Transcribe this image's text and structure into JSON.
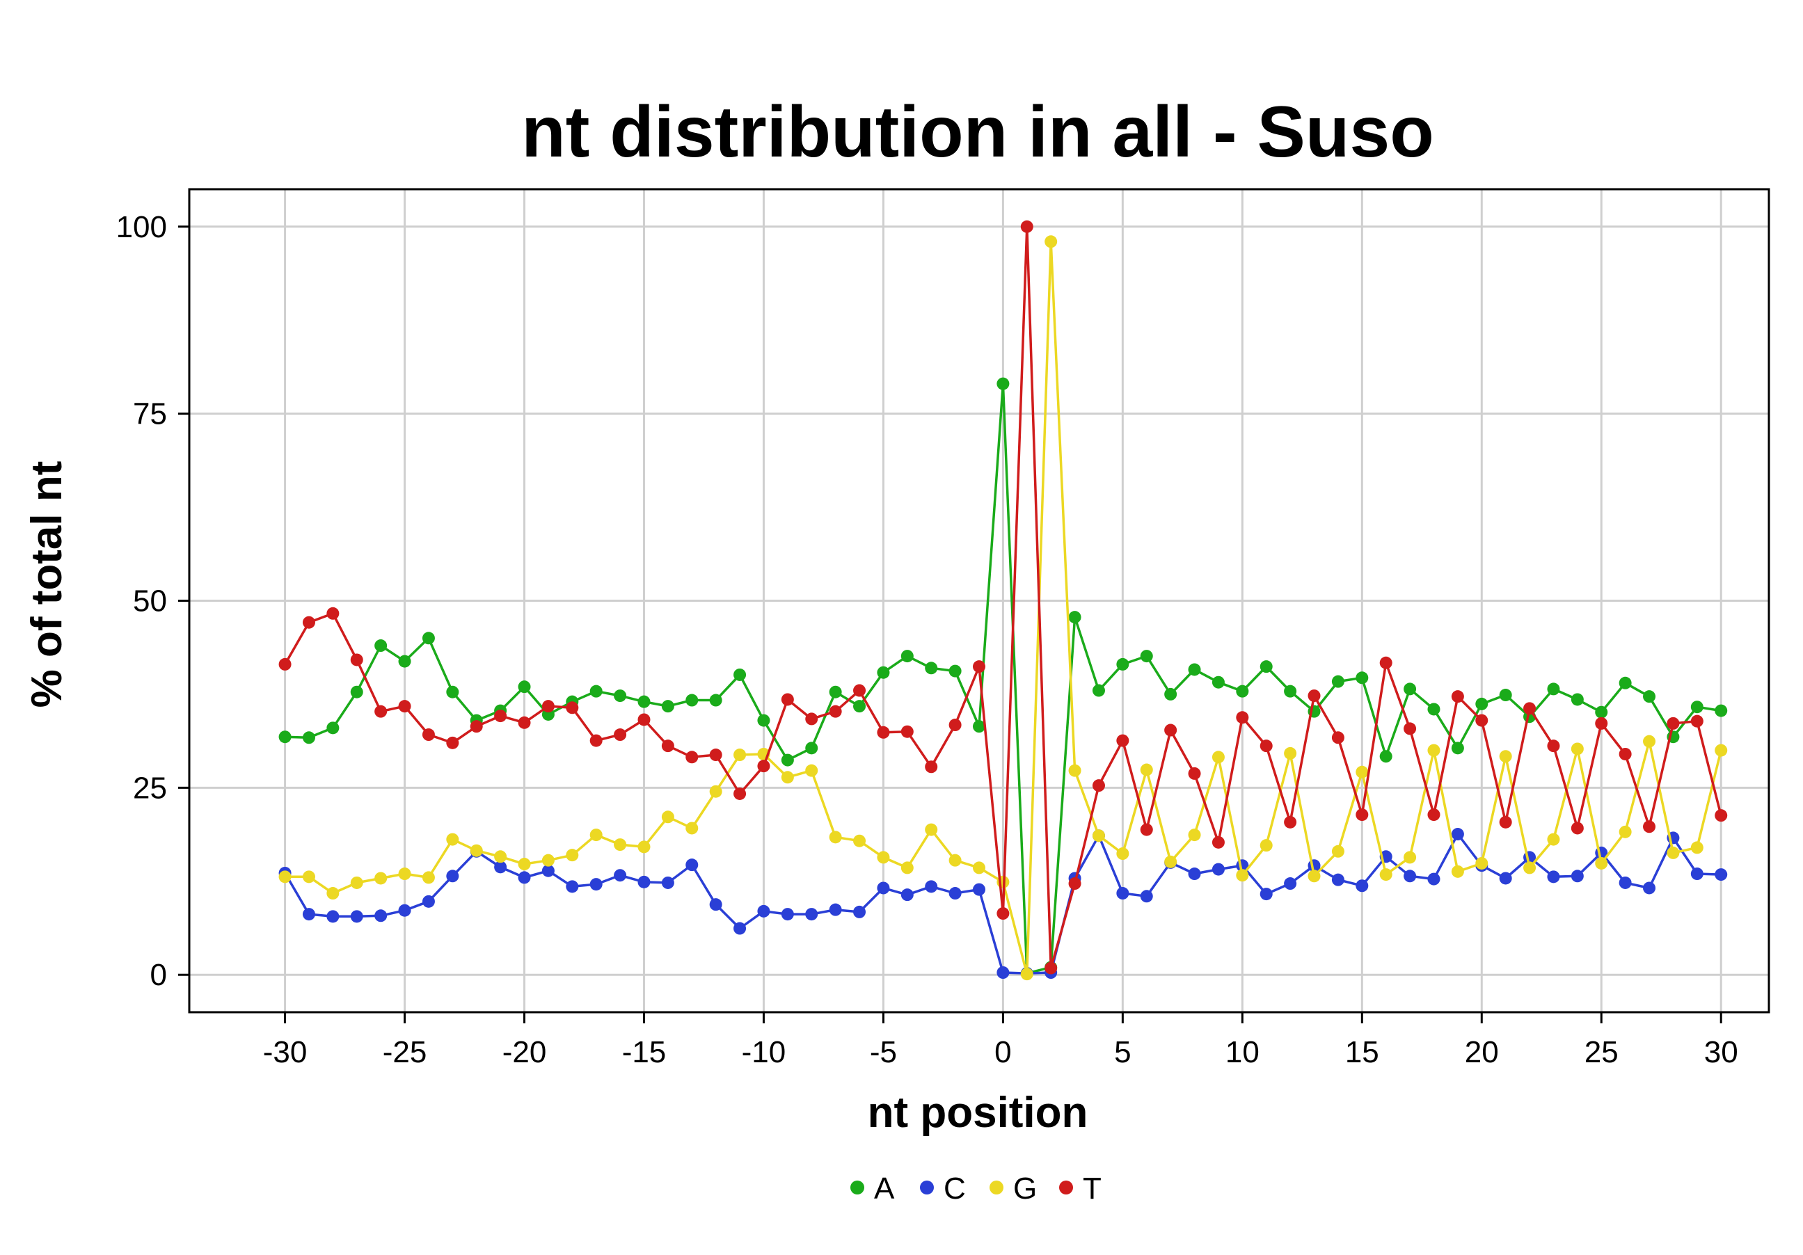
{
  "chart_data": {
    "type": "line",
    "title": "nt distribution in all - Suso",
    "xlabel": "nt position",
    "ylabel": "% of total nt",
    "xlim": [
      -34,
      32
    ],
    "ylim": [
      -5,
      105
    ],
    "xticks": [
      -30,
      -25,
      -20,
      -15,
      -10,
      -5,
      0,
      5,
      10,
      15,
      20,
      25,
      30
    ],
    "yticks": [
      0,
      25,
      50,
      75,
      100
    ],
    "grid": true,
    "legend_position": "bottom",
    "x": [
      -30,
      -29,
      -28,
      -27,
      -26,
      -25,
      -24,
      -23,
      -22,
      -21,
      -20,
      -19,
      -18,
      -17,
      -16,
      -15,
      -14,
      -13,
      -12,
      -11,
      -10,
      -9,
      -8,
      -7,
      -6,
      -5,
      -4,
      -3,
      -2,
      -1,
      0,
      1,
      2,
      3,
      4,
      5,
      6,
      7,
      8,
      9,
      10,
      11,
      12,
      13,
      14,
      15,
      16,
      17,
      18,
      19,
      20,
      21,
      22,
      23,
      24,
      25,
      26,
      27,
      28,
      29,
      30
    ],
    "series": [
      {
        "name": "A",
        "color": "#1aab1a",
        "values": [
          31.8,
          31.7,
          33.0,
          37.8,
          44.0,
          41.9,
          45.0,
          37.8,
          34.0,
          35.3,
          38.5,
          34.8,
          36.5,
          37.9,
          37.3,
          36.5,
          35.9,
          36.7,
          36.7,
          40.1,
          34.0,
          28.7,
          30.3,
          37.8,
          35.9,
          40.4,
          42.6,
          41.0,
          40.6,
          33.2,
          79.0,
          0.2,
          1.0,
          47.8,
          38.0,
          41.5,
          42.6,
          37.5,
          40.8,
          39.1,
          37.9,
          41.2,
          37.9,
          35.2,
          39.2,
          39.7,
          29.2,
          38.2,
          35.5,
          30.3,
          36.2,
          37.4,
          34.5,
          38.2,
          36.8,
          35.1,
          39.0,
          37.2,
          31.8,
          35.8,
          35.3
        ]
      },
      {
        "name": "C",
        "color": "#2a3fd6",
        "values": [
          13.6,
          8.1,
          7.8,
          7.8,
          7.9,
          8.6,
          9.8,
          13.2,
          16.5,
          14.4,
          13.0,
          13.9,
          11.8,
          12.1,
          13.3,
          12.4,
          12.3,
          14.7,
          9.4,
          6.2,
          8.5,
          8.1,
          8.1,
          8.7,
          8.4,
          11.6,
          10.7,
          11.8,
          10.9,
          11.4,
          0.3,
          0.2,
          0.3,
          12.9,
          18.6,
          10.9,
          10.5,
          15.0,
          13.5,
          14.1,
          14.6,
          10.8,
          12.2,
          14.6,
          12.7,
          11.9,
          15.8,
          13.2,
          12.8,
          18.8,
          14.6,
          12.9,
          15.7,
          13.1,
          13.2,
          16.3,
          12.3,
          11.6,
          18.3,
          13.5,
          13.4
        ]
      },
      {
        "name": "G",
        "color": "#ecd823",
        "values": [
          13.1,
          13.1,
          10.9,
          12.3,
          12.9,
          13.5,
          13.0,
          18.1,
          16.6,
          15.8,
          14.8,
          15.3,
          16.0,
          18.7,
          17.4,
          17.1,
          21.1,
          19.6,
          24.5,
          29.4,
          29.5,
          26.4,
          27.3,
          18.4,
          17.9,
          15.7,
          14.3,
          19.4,
          15.3,
          14.3,
          12.4,
          0.1,
          98.0,
          27.3,
          18.6,
          16.2,
          27.4,
          15.1,
          18.7,
          29.1,
          13.3,
          17.3,
          29.6,
          13.2,
          16.5,
          27.1,
          13.4,
          15.7,
          30.0,
          13.8,
          14.9,
          29.2,
          14.3,
          18.1,
          30.2,
          14.9,
          19.1,
          31.2,
          16.3,
          17.0,
          30.0
        ]
      },
      {
        "name": "T",
        "color": "#d01c1c",
        "values": [
          41.5,
          47.1,
          48.3,
          42.1,
          35.2,
          35.9,
          32.1,
          31.0,
          33.2,
          34.6,
          33.7,
          35.9,
          35.7,
          31.3,
          32.1,
          34.1,
          30.6,
          29.1,
          29.4,
          24.2,
          27.9,
          36.8,
          34.2,
          35.2,
          38.0,
          32.4,
          32.5,
          27.8,
          33.4,
          41.2,
          8.2,
          100.0,
          0.9,
          12.2,
          25.3,
          31.3,
          19.4,
          32.7,
          26.9,
          17.7,
          34.4,
          30.6,
          20.4,
          37.3,
          31.7,
          21.4,
          41.7,
          32.9,
          21.4,
          37.2,
          34.0,
          20.4,
          35.6,
          30.6,
          19.6,
          33.6,
          29.5,
          19.8,
          33.6,
          33.9,
          21.3
        ]
      }
    ]
  }
}
